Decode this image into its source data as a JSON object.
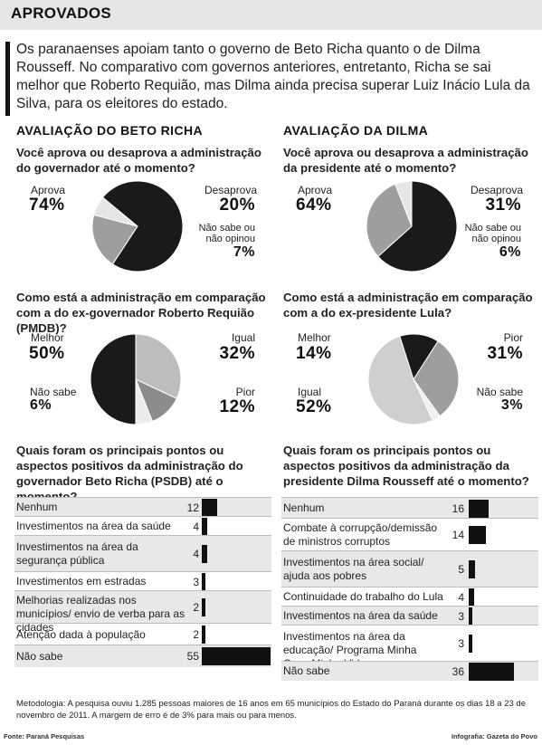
{
  "header": {
    "title": "APROVADOS"
  },
  "intro": "Os paranaenses apoiam tanto o governo de Beto Richa quanto o de Dilma Rousseff. No comparativo com governos anteriores, entretanto, Richa se sai melhor que Roberto Requião, mas Dilma ainda precisa superar Luiz Inácio Lula da Silva, para os eleitores do estado.",
  "sections": {
    "left_title": "AVALIAÇÃO DO BETO RICHA",
    "right_title": "AVALIAÇÃO DA DILMA"
  },
  "chart_data": [
    {
      "type": "pie",
      "title": "Você aprova ou desaprova a administração do governador até o momento?",
      "slices": [
        {
          "label": "Aprova",
          "value": 74,
          "display": "74%",
          "color": "#1a1a1a"
        },
        {
          "label": "Desaprova",
          "value": 20,
          "display": "20%",
          "color": "#9e9e9e"
        },
        {
          "label": "Não sabe ou não opinou",
          "value": 7,
          "display": "7%",
          "color": "#e6e6e6"
        }
      ]
    },
    {
      "type": "pie",
      "title": "Você aprova ou desaprova a administração da presidente até o momento?",
      "slices": [
        {
          "label": "Aprova",
          "value": 64,
          "display": "64%",
          "color": "#1a1a1a"
        },
        {
          "label": "Desaprova",
          "value": 31,
          "display": "31%",
          "color": "#9e9e9e"
        },
        {
          "label": "Não sabe ou não opinou",
          "value": 6,
          "display": "6%",
          "color": "#e6e6e6"
        }
      ]
    },
    {
      "type": "pie",
      "title": "Como está a administração em comparação com a do ex-governador Roberto Requião (PMDB)?",
      "slices": [
        {
          "label": "Igual",
          "value": 32,
          "display": "32%",
          "color": "#bdbdbd"
        },
        {
          "label": "Pior",
          "value": 12,
          "display": "12%",
          "color": "#8c8c8c"
        },
        {
          "label": "Não sabe",
          "value": 6,
          "display": "6%",
          "color": "#ececec"
        },
        {
          "label": "Melhor",
          "value": 50,
          "display": "50%",
          "color": "#1a1a1a"
        }
      ]
    },
    {
      "type": "pie",
      "title": "Como está a administração em comparação com a do ex-presidente Lula?",
      "slices": [
        {
          "label": "Pior",
          "value": 31,
          "display": "31%",
          "color": "#9e9e9e"
        },
        {
          "label": "Não sabe",
          "value": 3,
          "display": "3%",
          "color": "#f0f0f0"
        },
        {
          "label": "Igual",
          "value": 52,
          "display": "52%",
          "color": "#cfcfcf"
        },
        {
          "label": "Melhor",
          "value": 14,
          "display": "14%",
          "color": "#1a1a1a"
        }
      ]
    },
    {
      "type": "bar",
      "title": "Quais foram os principais pontos ou aspectos positivos da administração do governador Beto Richa (PSDB) até o momento?",
      "categories": [
        "Nenhum",
        "Investimentos na área da saúde",
        "Investimentos na área da segurança pública",
        "Investimentos em estradas",
        "Melhorias realizadas nos municípios/ envio de verba para as cidades",
        "Atenção dada à população",
        "Não sabe"
      ],
      "values": [
        12,
        4,
        4,
        3,
        2,
        2,
        55
      ]
    },
    {
      "type": "bar",
      "title": "Quais foram os principais pontos ou aspectos positivos da administração da presidente Dilma Rousseff até o momento?",
      "categories": [
        "Nenhum",
        "Combate à corrupção/demissão de ministros corruptos",
        "Investimentos na área social/ ajuda aos pobres",
        "Continuidade do trabalho do Lula",
        "Investimentos na área da saúde",
        "Investimentos na área da educação/ Programa Minha Casa Minha Vida",
        "Não sabe"
      ],
      "values": [
        16,
        14,
        5,
        4,
        3,
        3,
        36
      ]
    }
  ],
  "labels": {
    "p1": {
      "a_label": "Aprova",
      "a_pct": "74%",
      "b_label": "Desaprova",
      "b_pct": "20%",
      "c_label1": "Não sabe ou",
      "c_label2": "não opinou",
      "c_pct": "7%"
    },
    "p2": {
      "a_label": "Aprova",
      "a_pct": "64%",
      "b_label": "Desaprova",
      "b_pct": "31%",
      "c_label1": "Não sabe ou",
      "c_label2": "não opinou",
      "c_pct": "6%"
    },
    "p3": {
      "m_label": "Melhor",
      "m_pct": "50%",
      "i_label": "Igual",
      "i_pct": "32%",
      "p_label": "Pior",
      "p_pct": "12%",
      "n_label": "Não sabe",
      "n_pct": "6%"
    },
    "p4": {
      "m_label": "Melhor",
      "m_pct": "14%",
      "p_label": "Pior",
      "p_pct": "31%",
      "n_label": "Não sabe",
      "n_pct": "3%",
      "i_label": "Igual",
      "i_pct": "52%"
    }
  },
  "footer": {
    "methodology": "Metodologia: A pesquisa ouviu 1.285 pessoas maiores de 16 anos em 65 municípios do Estado do Paraná durante os dias 18 a 23 de novembro de 2011.   A margem de erro é de 3% para mais ou para menos.",
    "source": "Fonte: Paraná Pesquisas",
    "credit": "Infografia: Gazeta do Povo"
  }
}
